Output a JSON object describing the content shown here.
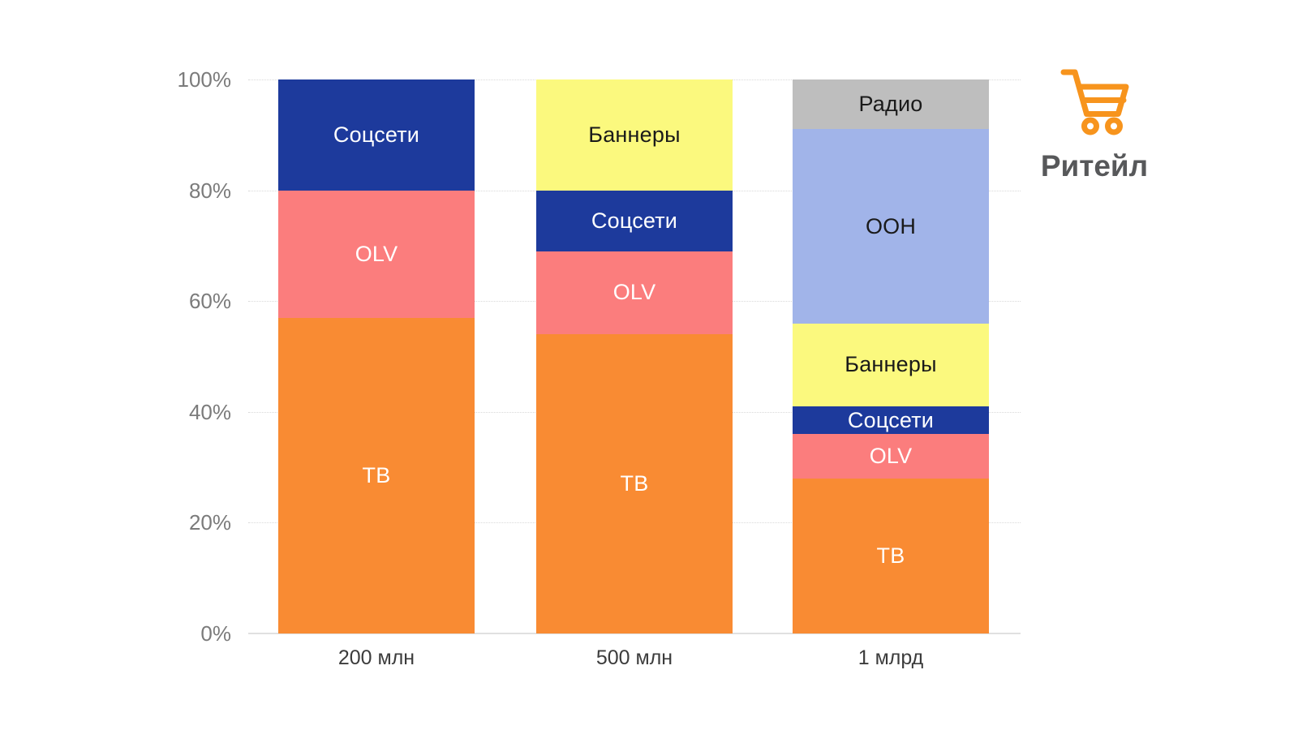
{
  "page": {
    "background": "#ffffff"
  },
  "header": {
    "category_label": "Ритейл",
    "category_icon": "shopping-cart-icon",
    "icon_color": "#F7941D",
    "label_color": "#57585A"
  },
  "axis": {
    "tick_color": "#7B7B7B",
    "category_label_color": "#3C3C3C",
    "gridline_color": "#D9D9D9",
    "baseline_color": "#E0E0E0"
  },
  "chart_data": {
    "type": "bar",
    "stacked": true,
    "orientation": "vertical",
    "unit": "%",
    "title": "",
    "xlabel": "",
    "ylabel": "",
    "ylim": [
      0,
      100
    ],
    "grid": true,
    "legend_position": "none (labels inside segments)",
    "y_ticks": [
      0,
      20,
      40,
      60,
      80,
      100
    ],
    "y_tick_labels": [
      "0%",
      "20%",
      "40%",
      "60%",
      "80%",
      "100%"
    ],
    "categories": [
      "200 млн",
      "500 млн",
      "1 млрд"
    ],
    "series": [
      {
        "name": "ТВ",
        "color": "#F98B33",
        "label_color": "#FFFFFF",
        "values": [
          57,
          54,
          28
        ]
      },
      {
        "name": "OLV",
        "color": "#FB7D7D",
        "label_color": "#FFFFFF",
        "values": [
          23,
          15,
          8
        ]
      },
      {
        "name": "Соцсети",
        "color": "#1D3A9C",
        "label_color": "#FFFFFF",
        "values": [
          20,
          11,
          5
        ]
      },
      {
        "name": "Баннеры",
        "color": "#FBF97E",
        "label_color": "#1A1A1A",
        "values": [
          0,
          20,
          15
        ]
      },
      {
        "name": "OOH",
        "color": "#A1B4E9",
        "label_color": "#1A1A1A",
        "values": [
          0,
          0,
          35
        ]
      },
      {
        "name": "Радио",
        "color": "#BEBEBE",
        "label_color": "#1A1A1A",
        "values": [
          0,
          0,
          9
        ]
      }
    ]
  }
}
